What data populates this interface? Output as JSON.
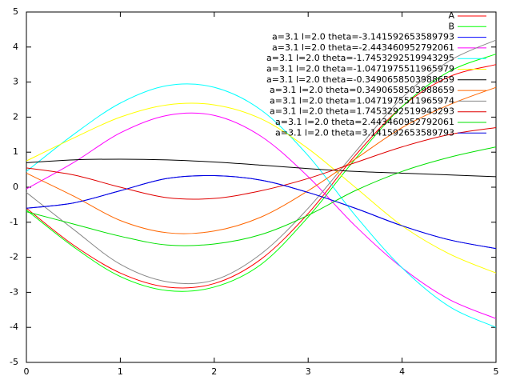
{
  "chart_data": {
    "type": "line",
    "x": [
      0,
      0.5,
      1,
      1.5,
      2,
      2.5,
      3,
      3.5,
      4,
      4.5,
      5
    ],
    "xlim": [
      0,
      5
    ],
    "xticks": [
      0,
      1,
      2,
      3,
      4,
      5
    ],
    "ylim": [
      -5,
      5
    ],
    "yticks": [
      -5,
      -4,
      -3,
      -2,
      -1,
      0,
      1,
      2,
      3,
      4,
      5
    ],
    "legend": "top-right",
    "series": [
      {
        "name": "A",
        "color": "#ff0000",
        "values": [
          -0.6,
          -1.65,
          -2.45,
          -2.85,
          -2.75,
          -2.05,
          -0.75,
          0.9,
          2.3,
          3.15,
          3.5
        ]
      },
      {
        "name": "B",
        "color": "#00ff00",
        "values": [
          -0.65,
          -1.7,
          -2.55,
          -2.95,
          -2.85,
          -2.2,
          -0.85,
          0.8,
          2.3,
          3.3,
          3.8
        ]
      },
      {
        "name": "a=3.1 l=2.0 theta=-3.141592653589793",
        "color": "#0000ff",
        "values": [
          -0.6,
          -0.45,
          -0.1,
          0.25,
          0.33,
          0.2,
          -0.15,
          -0.6,
          -1.1,
          -1.5,
          -1.75
        ]
      },
      {
        "name": "a=3.1 l=2.0 theta=-2.443460952792061",
        "color": "#ff00ff",
        "values": [
          -0.05,
          0.7,
          1.55,
          2.05,
          2.05,
          1.45,
          0.3,
          -1.1,
          -2.3,
          -3.2,
          -3.75
        ]
      },
      {
        "name": "a=3.1 l=2.0 theta=-1.7453292519943295",
        "color": "#00ffff",
        "values": [
          0.45,
          1.5,
          2.4,
          2.9,
          2.85,
          2.2,
          0.9,
          -0.8,
          -2.3,
          -3.4,
          -4.0
        ]
      },
      {
        "name": "a=3.1 l=2.0 theta=-1.0471975511965979",
        "color": "#ffff00",
        "values": [
          0.75,
          1.4,
          2.0,
          2.35,
          2.35,
          1.95,
          1.1,
          0.0,
          -1.1,
          -1.9,
          -2.45
        ]
      },
      {
        "name": "a=3.1 l=2.0 theta=-0.3490658503988659",
        "color": "#000000",
        "values": [
          0.7,
          0.78,
          0.8,
          0.78,
          0.72,
          0.63,
          0.53,
          0.45,
          0.4,
          0.35,
          0.3
        ]
      },
      {
        "name": "a=3.1 l=2.0 theta=0.3490658503988659",
        "color": "#ff6600",
        "values": [
          0.4,
          -0.25,
          -0.95,
          -1.3,
          -1.25,
          -0.85,
          -0.1,
          0.8,
          1.7,
          2.35,
          2.85
        ]
      },
      {
        "name": "a=3.1 l=2.0 theta=1.0471975511965974",
        "color": "#888888",
        "values": [
          -0.15,
          -1.2,
          -2.2,
          -2.7,
          -2.65,
          -1.9,
          -0.6,
          1.0,
          2.55,
          3.6,
          4.2
        ]
      },
      {
        "name": "a=3.1 l=2.0 theta=1.7453292519943293",
        "color": "#e00000",
        "values": [
          0.55,
          0.35,
          0.0,
          -0.3,
          -0.32,
          -0.1,
          0.25,
          0.7,
          1.15,
          1.5,
          1.7
        ]
      },
      {
        "name": "a=3.1 l=2.0 theta=2.443460952792061",
        "color": "#00e000",
        "values": [
          -0.7,
          -1.05,
          -1.4,
          -1.65,
          -1.62,
          -1.35,
          -0.8,
          -0.1,
          0.45,
          0.85,
          1.15
        ]
      },
      {
        "name": "a=3.1 l=2.0 theta=3.141592653589793",
        "color": "#0000e0",
        "values": [
          -0.6,
          -0.45,
          -0.1,
          0.25,
          0.33,
          0.2,
          -0.15,
          -0.6,
          -1.1,
          -1.5,
          -1.75
        ]
      }
    ]
  }
}
